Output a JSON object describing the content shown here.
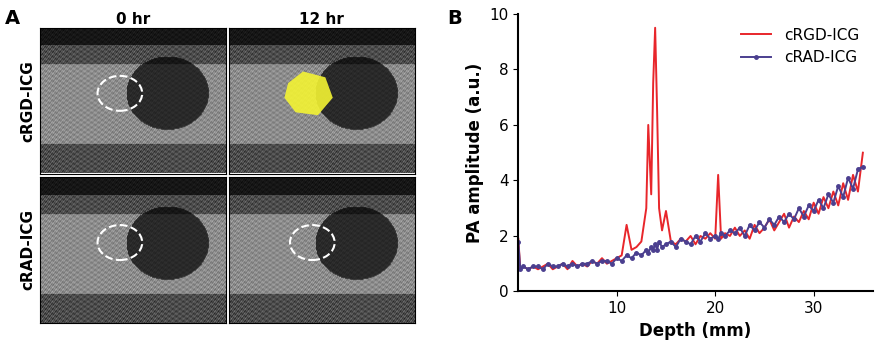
{
  "panel_labels": [
    "A",
    "B"
  ],
  "image_panel": {
    "columns": [
      "0 hr",
      "12 hr"
    ],
    "rows": [
      "cRGD-ICG",
      "cRAD-ICG"
    ]
  },
  "chart_data": {
    "type": "line",
    "x_label": "Depth (mm)",
    "y_label": "PA amplitude (a.u.)",
    "x": [
      0,
      0.2,
      0.5,
      1,
      1.5,
      2,
      2.5,
      3,
      3.5,
      4,
      4.5,
      5,
      5.5,
      6,
      6.5,
      7,
      7.5,
      8,
      8.5,
      9,
      9.5,
      10,
      10.5,
      11,
      11.5,
      12,
      12.5,
      13,
      13.2,
      13.5,
      13.7,
      13.9,
      14.1,
      14.3,
      14.6,
      15,
      15.5,
      16,
      16.5,
      17,
      17.5,
      18,
      18.5,
      19,
      19.5,
      20,
      20.3,
      20.6,
      21,
      21.5,
      22,
      22.5,
      23,
      23.5,
      24,
      24.5,
      25,
      25.5,
      26,
      26.5,
      27,
      27.5,
      28,
      28.5,
      29,
      29.5,
      30,
      30.5,
      31,
      31.5,
      32,
      32.5,
      33,
      33.5,
      34,
      34.5,
      35
    ],
    "series": [
      {
        "name": "cRGD-ICG",
        "color": "#e8262b",
        "marker": "none",
        "line_style": "solid",
        "values": [
          1.9,
          0.8,
          0.9,
          0.8,
          0.9,
          0.8,
          0.9,
          1.0,
          0.8,
          0.9,
          1.0,
          0.8,
          1.1,
          0.9,
          1.0,
          0.9,
          1.1,
          1.0,
          1.2,
          1.0,
          1.1,
          1.2,
          1.3,
          2.4,
          1.5,
          1.6,
          1.8,
          3.0,
          6.0,
          3.5,
          7.5,
          9.5,
          6.5,
          3.0,
          2.2,
          2.9,
          1.8,
          1.7,
          1.9,
          1.8,
          2.0,
          1.7,
          2.0,
          1.9,
          2.1,
          1.9,
          4.2,
          1.9,
          2.1,
          2.0,
          2.3,
          2.0,
          2.2,
          1.9,
          2.4,
          2.1,
          2.3,
          2.6,
          2.2,
          2.5,
          2.8,
          2.3,
          2.7,
          2.5,
          2.9,
          2.6,
          3.2,
          2.8,
          3.4,
          3.0,
          3.6,
          3.1,
          3.9,
          3.3,
          4.2,
          3.6,
          5.0
        ]
      },
      {
        "name": "cRAD-ICG",
        "color": "#4b3f8f",
        "marker": "o",
        "line_style": "solid",
        "values": [
          1.8,
          0.8,
          0.9,
          0.8,
          0.9,
          0.9,
          0.8,
          1.0,
          0.9,
          0.9,
          1.0,
          0.9,
          1.0,
          0.9,
          1.0,
          1.0,
          1.1,
          1.0,
          1.1,
          1.1,
          1.0,
          1.2,
          1.1,
          1.3,
          1.2,
          1.4,
          1.3,
          1.5,
          1.4,
          1.6,
          1.5,
          1.7,
          1.5,
          1.8,
          1.6,
          1.7,
          1.8,
          1.6,
          1.9,
          1.8,
          1.7,
          2.0,
          1.8,
          2.1,
          1.9,
          2.0,
          1.9,
          2.1,
          2.0,
          2.2,
          2.1,
          2.3,
          2.0,
          2.4,
          2.2,
          2.5,
          2.3,
          2.6,
          2.4,
          2.7,
          2.5,
          2.8,
          2.6,
          3.0,
          2.7,
          3.1,
          2.9,
          3.3,
          3.0,
          3.5,
          3.2,
          3.8,
          3.4,
          4.1,
          3.7,
          4.4,
          4.5
        ]
      }
    ],
    "xlim": [
      0,
      36
    ],
    "xticks": [
      10,
      20,
      30
    ],
    "ylim": [
      0,
      10
    ],
    "yticks": [
      0,
      2,
      4,
      6,
      8,
      10
    ],
    "legend": "upper right"
  }
}
